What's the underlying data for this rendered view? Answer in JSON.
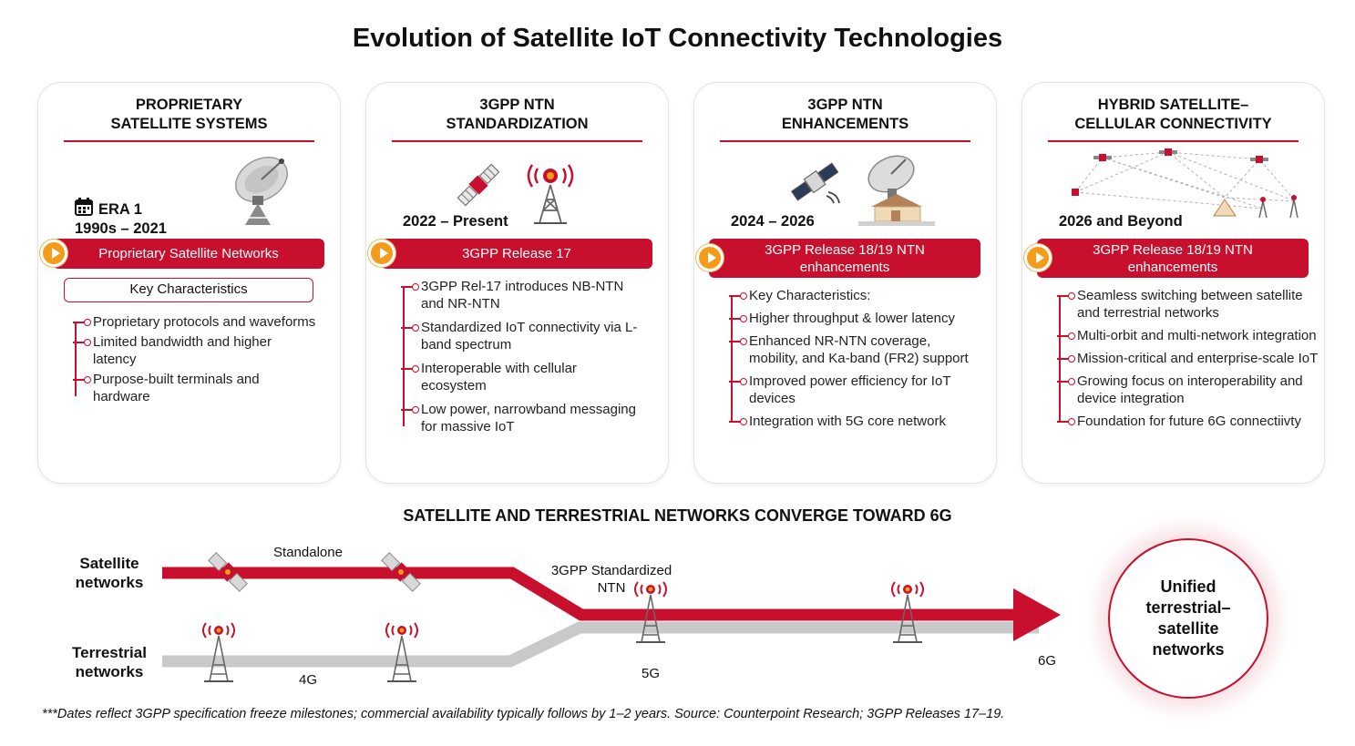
{
  "title": "Evolution of Satellite IoT Connectivity Technologies",
  "cards": [
    {
      "heading": "PROPRIETARY\nSATELLITE SYSTEMS",
      "era_label": "ERA 1",
      "era": "1990s – 2021",
      "banner": "Proprietary Satellite Networks",
      "key_box": "Key Characteristics",
      "bullets": [
        "Proprietary protocols and waveforms",
        "Limited bandwidth and higher latency",
        "Purpose-built terminals and hardware"
      ],
      "icons": [
        "calendar-icon",
        "satellite-dish-icon"
      ]
    },
    {
      "heading": "3GPP NTN\nSTANDARDIZATION",
      "era": "2022 – Present",
      "banner": "3GPP Release 17",
      "bullets": [
        "3GPP Rel-17 introduces NB-NTN and NR-NTN",
        "Standardized IoT connectivity via L-band spectrum",
        "Interoperable with cellular ecosystem",
        "Low power, narrowband messaging for massive IoT"
      ],
      "icons": [
        "satellite-icon",
        "cell-tower-icon"
      ]
    },
    {
      "heading": "3GPP NTN\nENHANCEMENTS",
      "era": "2024 – 2026",
      "banner": "3GPP Release 18/19 NTN enhancements",
      "bullets": [
        "Key Characteristics:",
        "Higher throughput & lower latency",
        "Enhanced NR-NTN coverage, mobility, and Ka-band (FR2) support",
        "Improved power efficiency for IoT devices",
        "Integration with 5G core network"
      ],
      "icons": [
        "satellite-icon",
        "ground-station-icon"
      ]
    },
    {
      "heading": "HYBRID SATELLITE–\nCELLULAR CONNECTIVITY",
      "era": "2026 and Beyond",
      "banner": "3GPP Release 18/19 NTN enhancements",
      "bullets": [
        "Seamless switching between satellite and terrestrial networks",
        "Multi-orbit and multi-network integration",
        "Mission-critical and enterprise-scale IoT",
        "Growing focus on interoperability and device integration",
        "Foundation for future 6G connectiivty"
      ],
      "icons": [
        "network-mesh-icon"
      ]
    }
  ],
  "convergence": {
    "title": "SATELLITE AND TERRESTRIAL NETWORKS CONVERGE TOWARD 6G",
    "satellite_label": "Satellite\nnetworks",
    "terrestrial_label": "Terrestrial\nnetworks",
    "standalone_label": "Standalone",
    "ntn_label": "3GPP Standardized\nNTN",
    "label_4g": "4G",
    "label_5g": "5G",
    "label_6g": "6G",
    "unified": "Unified\nterrestrial–\nsatellite\nnetworks"
  },
  "footnote": "***Dates reflect 3GPP specification freeze milestones; commercial availability typically follows by 1–2 years. Source: Counterpoint Research; 3GPP Releases 17–19.",
  "colors": {
    "accent": "#c8102e",
    "play": "#f59b1a",
    "terrestrial": "#c9c9c9"
  }
}
